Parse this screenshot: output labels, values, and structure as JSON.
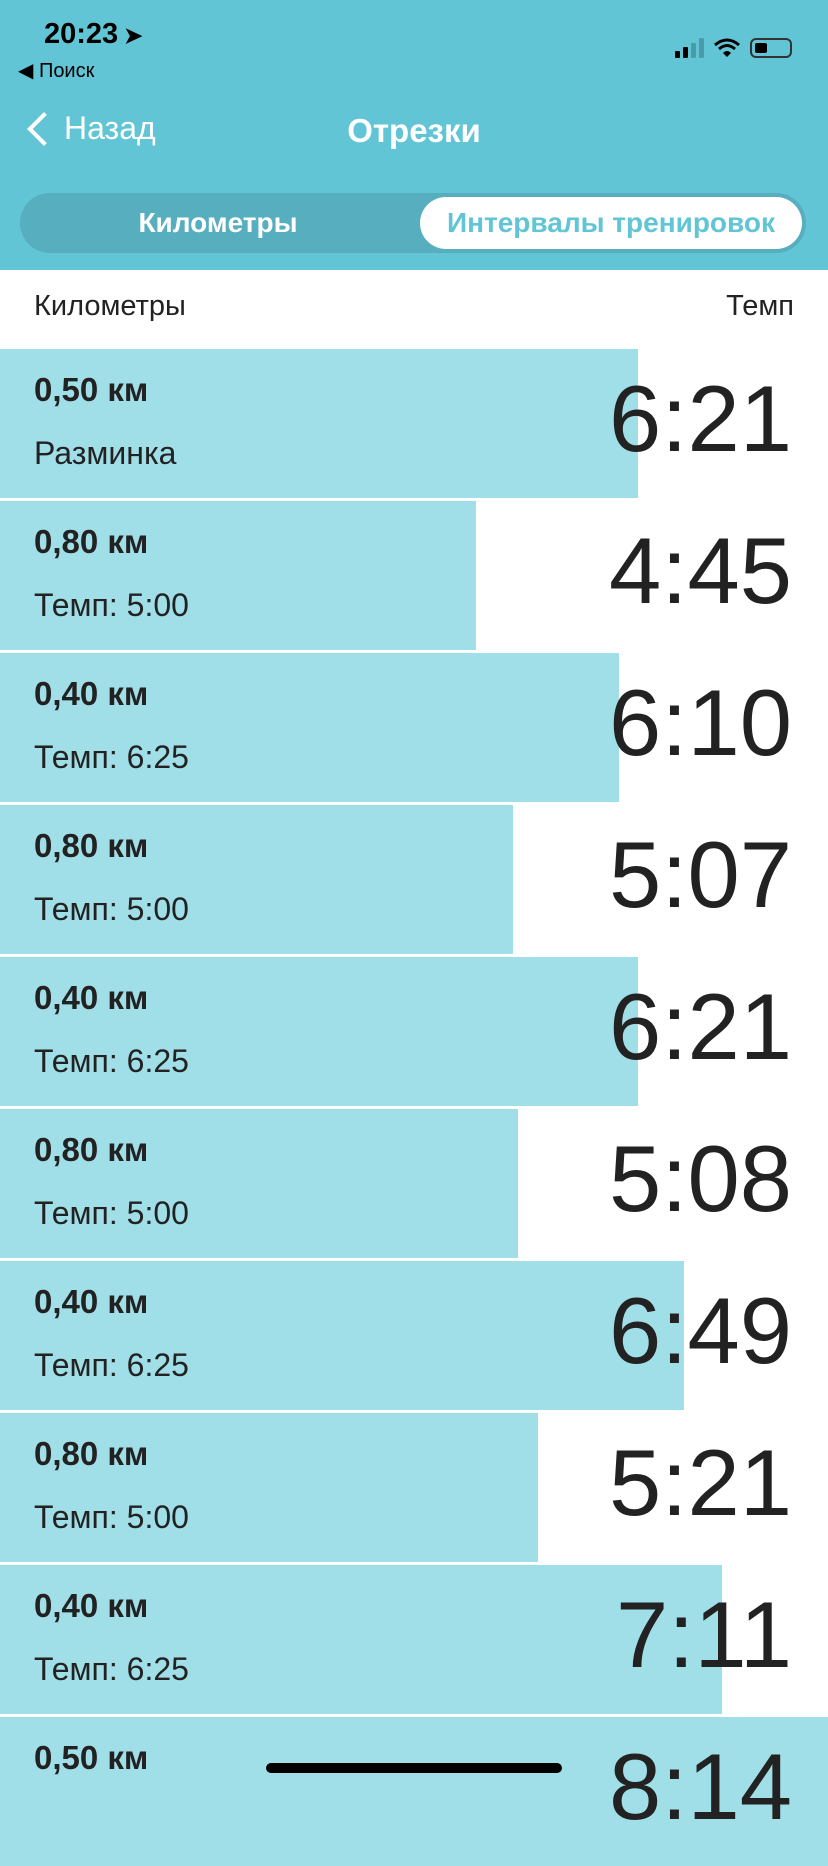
{
  "status_bar": {
    "time": "20:23",
    "back_app": "◀ Поиск",
    "icons": [
      "location-arrow-icon",
      "signal-icon",
      "wifi-icon",
      "battery-icon"
    ]
  },
  "nav": {
    "back_label": "Назад",
    "title": "Отрезки"
  },
  "segmented": {
    "options": [
      "Километры",
      "Интервалы тренировок"
    ],
    "selected": 1
  },
  "columns": {
    "left": "Километры",
    "right": "Темп"
  },
  "colors": {
    "header": "#62c5d5",
    "bar": "#a0dee8",
    "segment_bg": "#56aebf"
  },
  "rows": [
    {
      "distance": "0,50 км",
      "label": "Разминка",
      "pace": "6:21",
      "bar_fraction": 0.77
    },
    {
      "distance": "0,80 км",
      "label": "Темп: 5:00",
      "pace": "4:45",
      "bar_fraction": 0.575
    },
    {
      "distance": "0,40 км",
      "label": "Темп: 6:25",
      "pace": "6:10",
      "bar_fraction": 0.748
    },
    {
      "distance": "0,80 км",
      "label": "Темп: 5:00",
      "pace": "5:07",
      "bar_fraction": 0.62
    },
    {
      "distance": "0,40 км",
      "label": "Темп: 6:25",
      "pace": "6:21",
      "bar_fraction": 0.77
    },
    {
      "distance": "0,80 км",
      "label": "Темп: 5:00",
      "pace": "5:08",
      "bar_fraction": 0.625
    },
    {
      "distance": "0,40 км",
      "label": "Темп: 6:25",
      "pace": "6:49",
      "bar_fraction": 0.826
    },
    {
      "distance": "0,80 км",
      "label": "Темп: 5:00",
      "pace": "5:21",
      "bar_fraction": 0.65
    },
    {
      "distance": "0,40 км",
      "label": "Темп: 6:25",
      "pace": "7:11",
      "bar_fraction": 0.872
    },
    {
      "distance": "0,50 км",
      "label": "",
      "pace": "8:14",
      "bar_fraction": 1.0
    }
  ]
}
